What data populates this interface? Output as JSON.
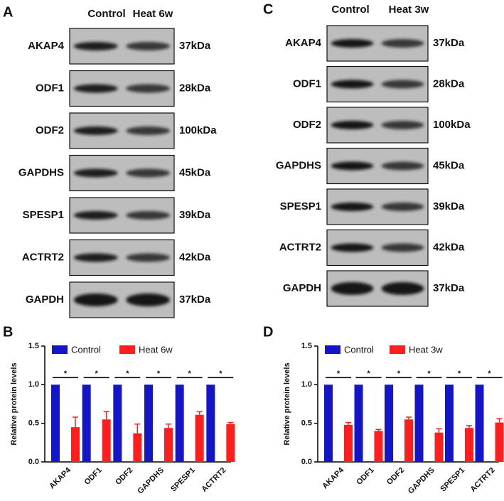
{
  "blot_panels": [
    {
      "letter": "A",
      "columns": [
        "Control",
        "Heat 6w"
      ],
      "rows": [
        {
          "protein": "AKAP4",
          "size": "37kDa"
        },
        {
          "protein": "ODF1",
          "size": "28kDa"
        },
        {
          "protein": "ODF2",
          "size": "100kDa"
        },
        {
          "protein": "GAPDHS",
          "size": "45kDa"
        },
        {
          "protein": "SPESP1",
          "size": "39kDa"
        },
        {
          "protein": "ACTRT2",
          "size": "42kDa"
        },
        {
          "protein": "GAPDH",
          "size": "37kDa"
        }
      ]
    },
    {
      "letter": "C",
      "columns": [
        "Control",
        "Heat 3w"
      ],
      "rows": [
        {
          "protein": "AKAP4",
          "size": "37kDa"
        },
        {
          "protein": "ODF1",
          "size": "28kDa"
        },
        {
          "protein": "ODF2",
          "size": "100kDa"
        },
        {
          "protein": "GAPDHS",
          "size": "45kDa"
        },
        {
          "protein": "SPESP1",
          "size": "39kDa"
        },
        {
          "protein": "ACTRT2",
          "size": "42kDa"
        },
        {
          "protein": "GAPDH",
          "size": "37kDa"
        }
      ]
    }
  ],
  "chart_data": [
    {
      "type": "bar",
      "letter": "B",
      "ylabel": "Relative protein levels",
      "categories": [
        "AKAP4",
        "ODF1",
        "ODF2",
        "GAPDHS",
        "SPESP1",
        "ACTRT2"
      ],
      "significance": [
        "*",
        "*",
        "*",
        "*",
        "*",
        "*"
      ],
      "series": [
        {
          "name": "Control",
          "color": "#1414c8",
          "values": [
            1,
            1,
            1,
            1,
            1,
            1
          ]
        },
        {
          "name": "Heat 6w",
          "color": "#ff1e1e",
          "values": [
            0.45,
            0.55,
            0.37,
            0.44,
            0.61,
            0.49
          ],
          "errors": [
            0.13,
            0.1,
            0.12,
            0.05,
            0.04,
            0.02
          ]
        }
      ],
      "ylim": [
        0,
        1.5
      ],
      "yticks": [
        {
          "value": 0,
          "label": "0.0"
        },
        {
          "value": 0.5,
          "label": "0.5"
        },
        {
          "value": 1,
          "label": "1.0"
        },
        {
          "value": 1.5,
          "label": "1.5"
        }
      ]
    },
    {
      "type": "bar",
      "letter": "D",
      "ylabel": "Relative protein levels",
      "categories": [
        "AKAP4",
        "ODF1",
        "ODF2",
        "GAPDHS",
        "SPESP1",
        "ACTRT2"
      ],
      "significance": [
        "*",
        "*",
        "*",
        "*",
        "*",
        "*"
      ],
      "series": [
        {
          "name": "Control",
          "color": "#1414c8",
          "values": [
            1,
            1,
            1,
            1,
            1,
            1
          ]
        },
        {
          "name": "Heat 3w",
          "color": "#ff1e1e",
          "values": [
            0.48,
            0.4,
            0.55,
            0.38,
            0.44,
            0.51
          ],
          "errors": [
            0.03,
            0.02,
            0.03,
            0.05,
            0.03,
            0.05
          ]
        }
      ],
      "ylim": [
        0,
        1.5
      ],
      "yticks": [
        {
          "value": 0,
          "label": "0.0"
        },
        {
          "value": 0.5,
          "label": "0.5"
        },
        {
          "value": 1,
          "label": "1.0"
        },
        {
          "value": 1.5,
          "label": "1.5"
        }
      ]
    }
  ]
}
